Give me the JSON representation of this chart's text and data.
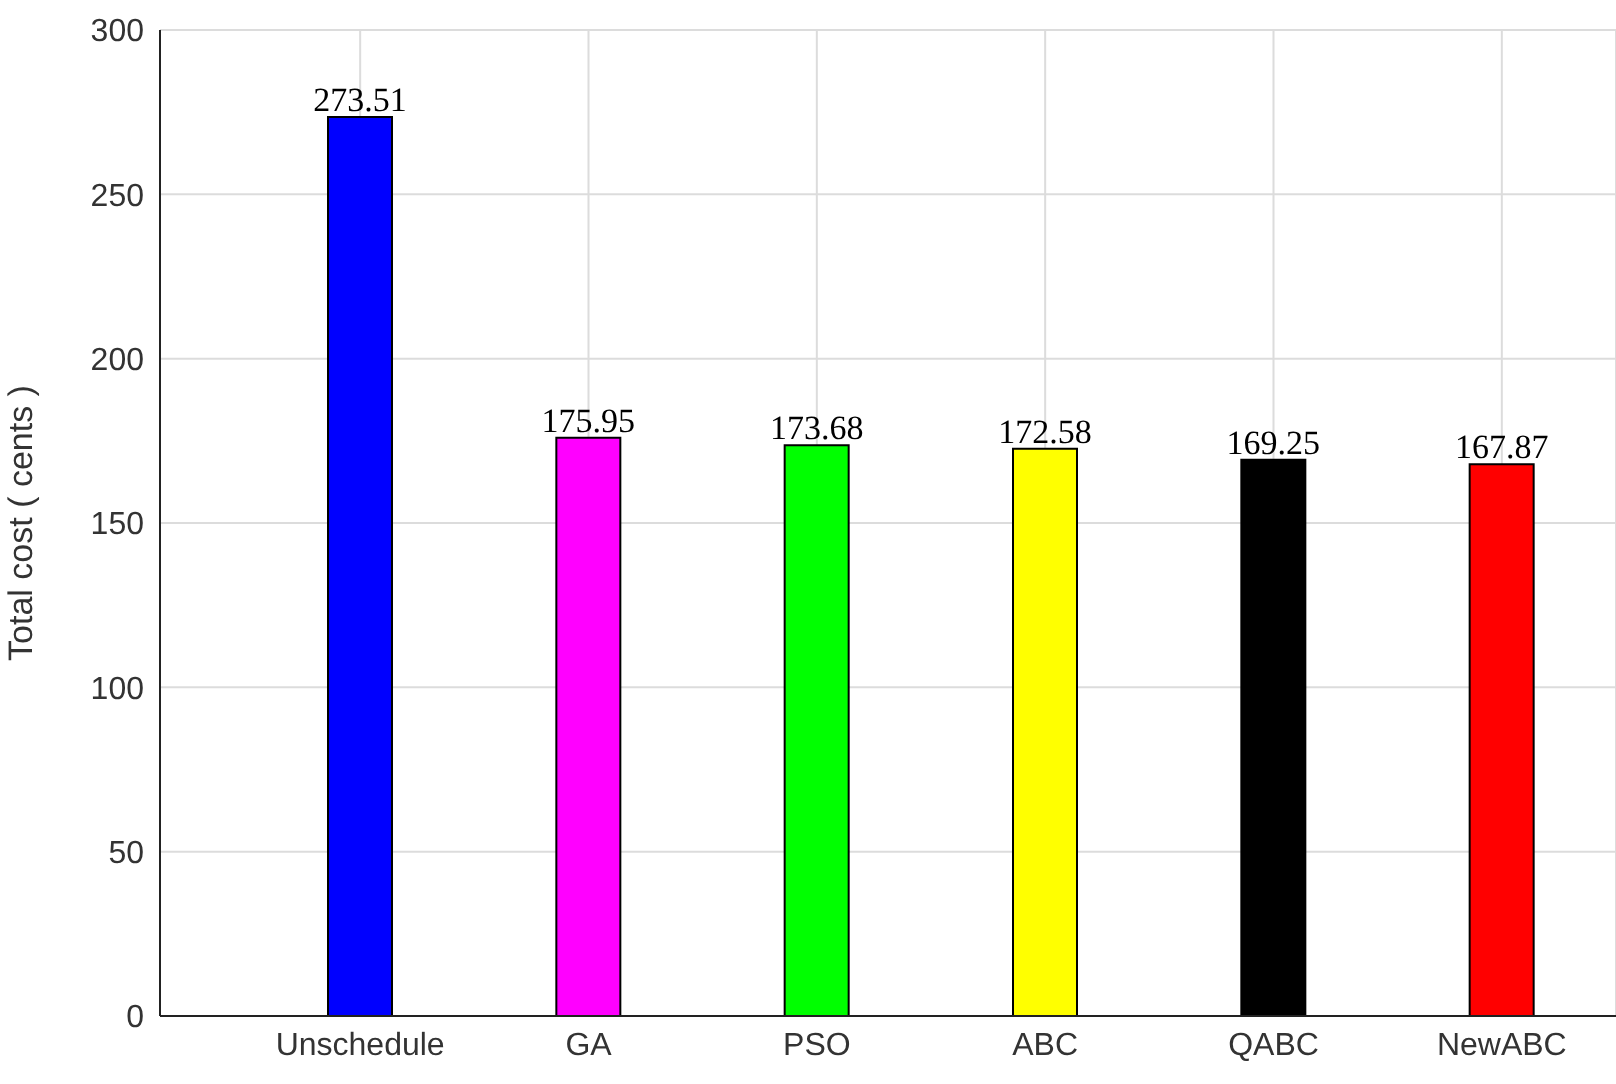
{
  "chart_data": {
    "type": "bar",
    "ylabel": "Total cost ( cents )",
    "categories": [
      "Unschedule",
      "GA",
      "PSO",
      "ABC",
      "QABC",
      "NewABC"
    ],
    "values": [
      273.51,
      175.95,
      173.68,
      172.58,
      169.25,
      167.87
    ],
    "colors": [
      "#0000ff",
      "#ff00ff",
      "#00ff00",
      "#ffff00",
      "#000000",
      "#ff0000"
    ],
    "ylim": [
      0,
      300
    ],
    "yticks": [
      0,
      50,
      100,
      150,
      200,
      250,
      300
    ],
    "grid": true,
    "data_labels": true
  }
}
